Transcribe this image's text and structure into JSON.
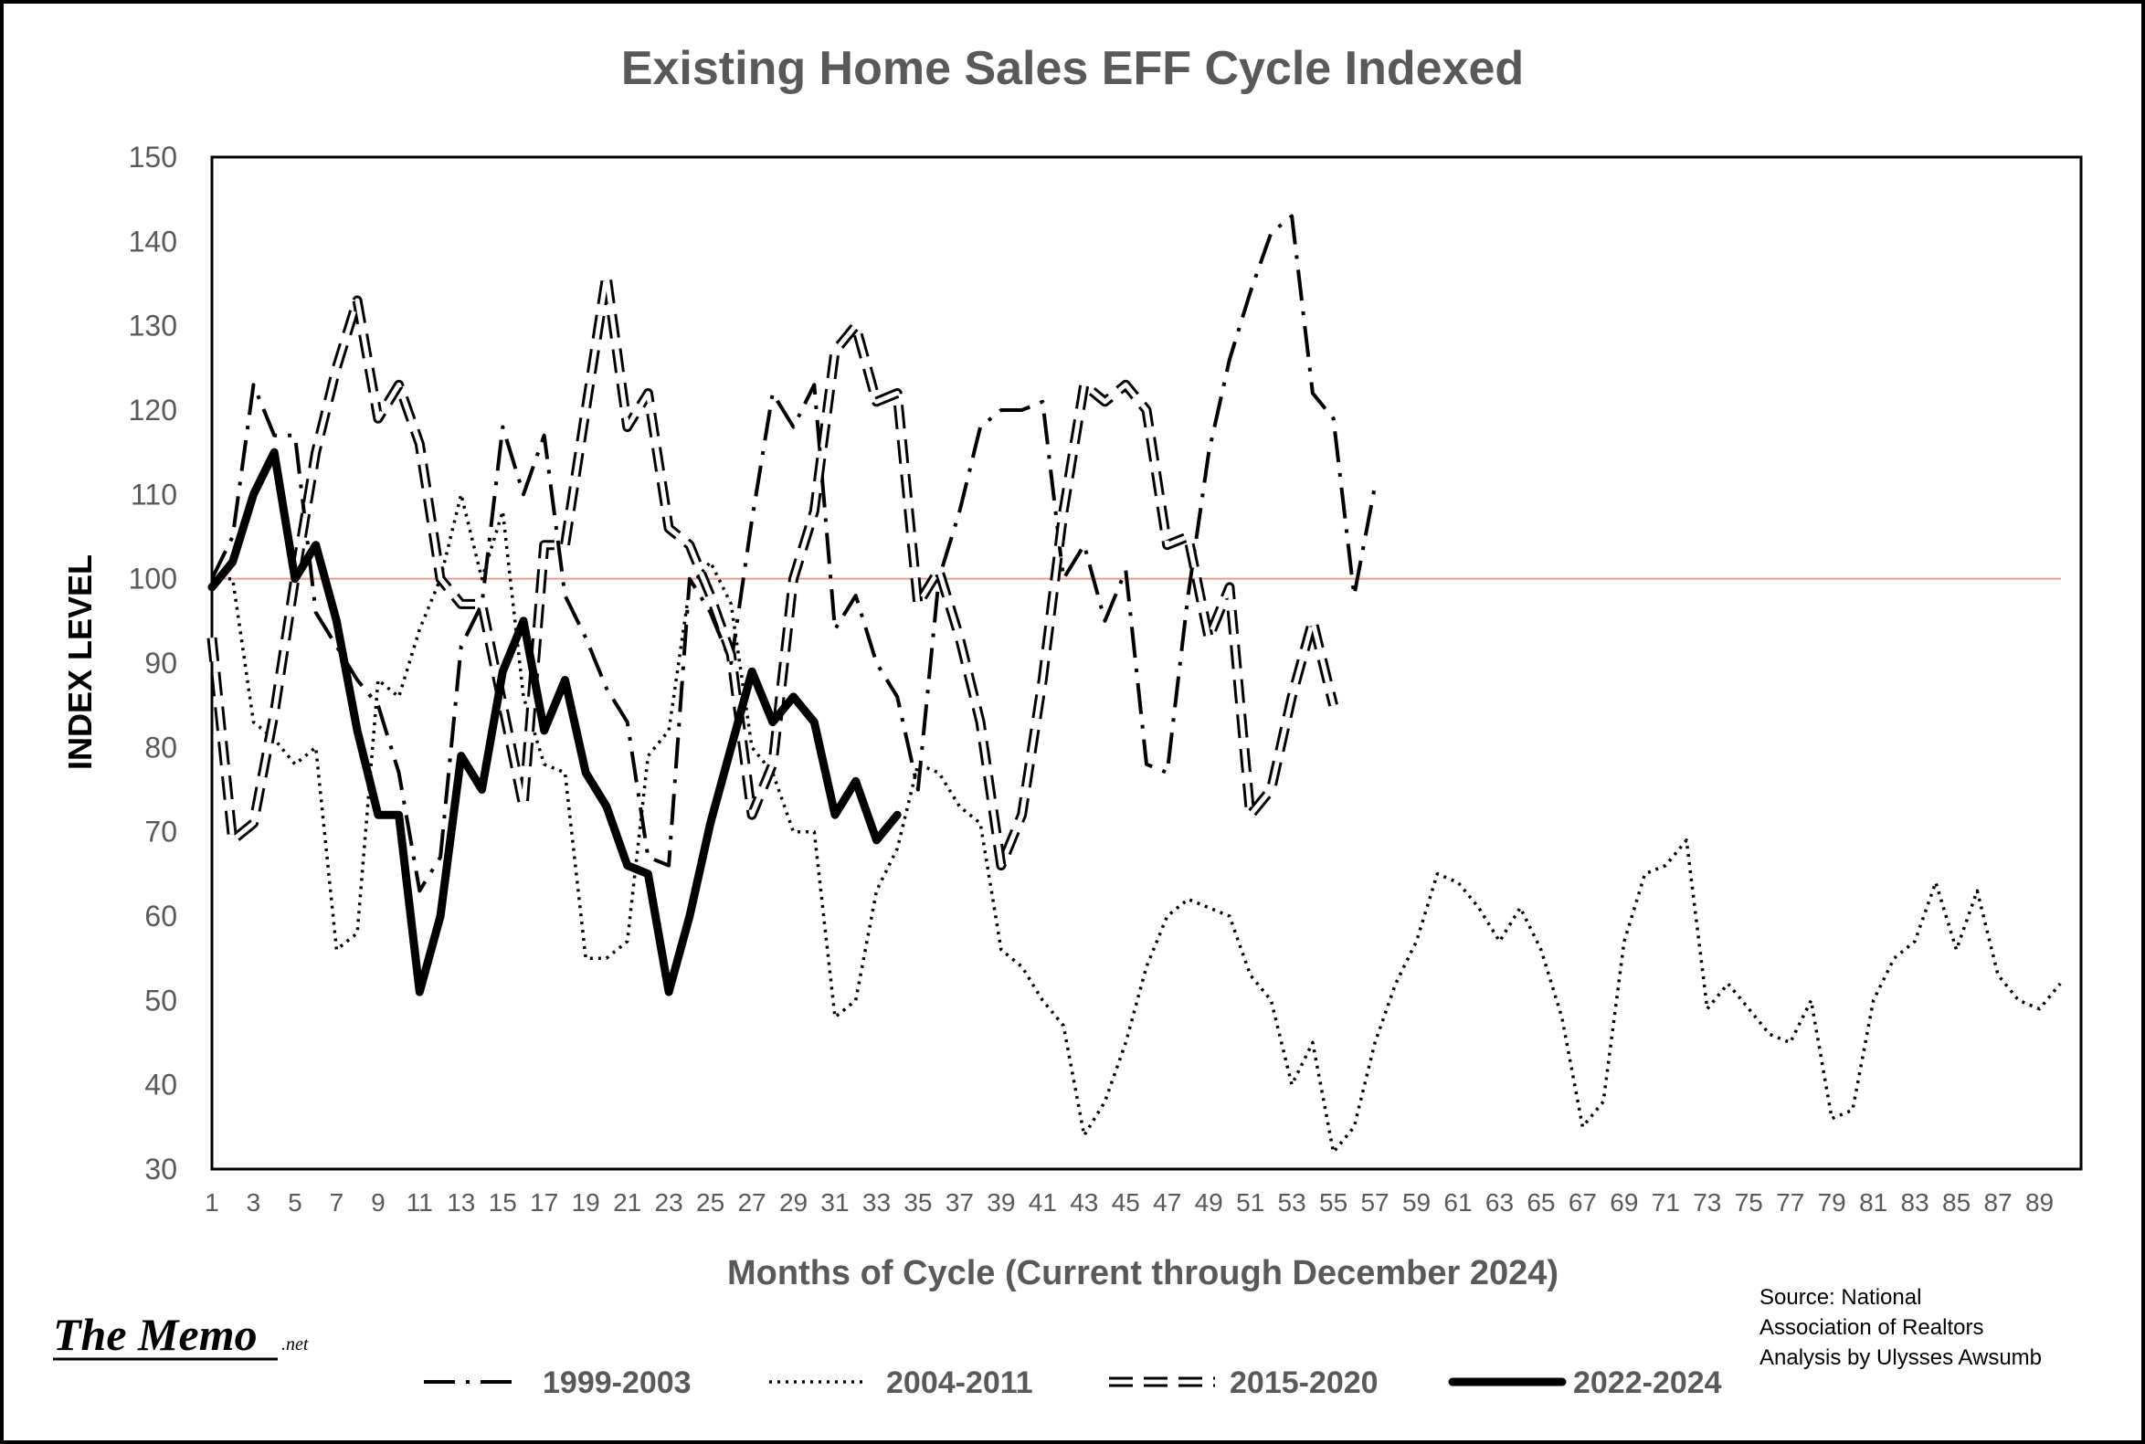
{
  "chart_data": {
    "type": "line",
    "title": "Existing Home  Sales  EFF Cycle Indexed",
    "xlabel": "Months of Cycle (Current through December 2024)",
    "ylabel": "INDEX LEVEL",
    "ylim": [
      30,
      150
    ],
    "yticks": [
      30,
      40,
      50,
      60,
      70,
      80,
      90,
      100,
      110,
      120,
      130,
      140,
      150
    ],
    "xlim": [
      1,
      90
    ],
    "xticks": [
      1,
      3,
      5,
      7,
      9,
      11,
      13,
      15,
      17,
      19,
      21,
      23,
      25,
      27,
      29,
      31,
      33,
      35,
      37,
      39,
      41,
      43,
      45,
      47,
      49,
      51,
      53,
      55,
      57,
      59,
      61,
      63,
      65,
      67,
      69,
      71,
      73,
      75,
      77,
      79,
      81,
      83,
      85,
      87,
      89
    ],
    "reference_line": 100,
    "grid": false,
    "legend_position": "bottom",
    "series": [
      {
        "name": "1999-2003",
        "style": "dash-dot",
        "values": [
          100,
          105,
          123,
          117,
          117,
          96,
          92,
          88,
          85,
          77,
          63,
          67,
          92,
          97,
          118,
          110,
          117,
          98,
          93,
          87,
          83,
          67,
          66,
          100,
          96,
          90,
          107,
          122,
          118,
          123,
          94,
          98,
          90,
          86,
          75,
          100,
          108,
          118,
          120,
          120,
          121,
          100,
          104,
          95,
          101,
          78,
          77,
          98,
          115,
          126,
          134,
          141,
          143,
          122,
          119,
          98,
          111
        ]
      },
      {
        "name": "2004-2011",
        "style": "dotted",
        "values": [
          100,
          100,
          83,
          81,
          78,
          80,
          56,
          58,
          88,
          86,
          94,
          100,
          110,
          100,
          108,
          86,
          78,
          77,
          55,
          55,
          57,
          79,
          82,
          99,
          102,
          97,
          80,
          77,
          70,
          70,
          48,
          50,
          63,
          68,
          78,
          77,
          73,
          71,
          56,
          54,
          50,
          47,
          34,
          38,
          45,
          54,
          60,
          62,
          61,
          60,
          53,
          50,
          40,
          45,
          32,
          35,
          45,
          52,
          57,
          65,
          64,
          61,
          57,
          61,
          56,
          48,
          35,
          38,
          57,
          65,
          66,
          69,
          49,
          52,
          49,
          46,
          45,
          50,
          36,
          37,
          50,
          55,
          57,
          64,
          56,
          63,
          53,
          50,
          49,
          52
        ]
      },
      {
        "name": "2015-2020",
        "style": "double-dash",
        "values": [
          93,
          69,
          71,
          84,
          100,
          115,
          125,
          133,
          119,
          123,
          116,
          100,
          97,
          97,
          85,
          73,
          104,
          104,
          120,
          136,
          118,
          122,
          106,
          104,
          98,
          91,
          72,
          78,
          100,
          108,
          127,
          130,
          121,
          122,
          97,
          101,
          93,
          83,
          66,
          72,
          88,
          108,
          123,
          121,
          123,
          120,
          104,
          105,
          93,
          99,
          72,
          75,
          86,
          95,
          85
        ]
      },
      {
        "name": "2022-2024",
        "style": "solid-bold",
        "values": [
          99,
          102,
          110,
          115,
          100,
          104,
          95,
          82,
          72,
          72,
          51,
          60,
          79,
          75,
          89,
          95,
          82,
          88,
          77,
          73,
          66,
          65,
          51,
          60,
          71,
          80,
          89,
          83,
          86,
          83,
          72,
          76,
          69,
          72
        ]
      }
    ],
    "source_text": [
      "Source: National",
      "Association of Realtors",
      "Analysis by Ulysses Awsumb"
    ],
    "logo_text": "The Memo",
    "logo_suffix": ".net"
  }
}
